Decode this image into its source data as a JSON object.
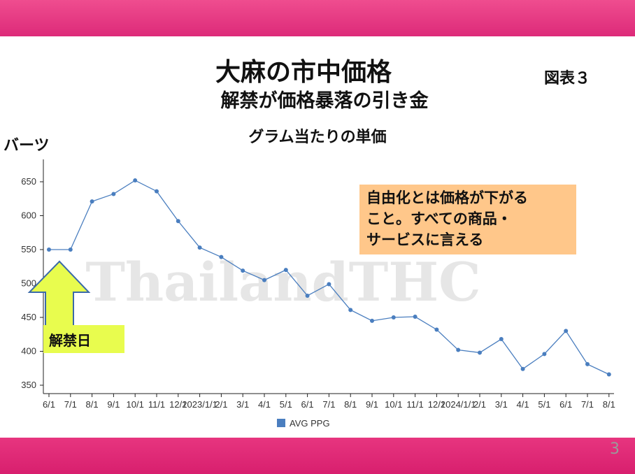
{
  "slide": {
    "title": "大麻の市中価格",
    "subtitle": "解禁が価格暴落の引き金",
    "figure_label": "図表３",
    "page_number": "3",
    "watermark": "ThailandTHC",
    "colors": {
      "band": "#e3307a",
      "line": "#4a7ebf",
      "note_bg": "#ffc78a",
      "arrow": "#e8fc4e"
    }
  },
  "note": {
    "lines": [
      "自由化とは価格が下がる",
      "こと。すべての商品・",
      "サービスに言える"
    ]
  },
  "ban_label": "解禁日",
  "chart_data": {
    "type": "line",
    "title": "グラム当たりの単価",
    "ylabel": "バーツ",
    "xlabel": "",
    "ylim": [
      340,
      680
    ],
    "yticks": [
      350,
      400,
      450,
      500,
      550,
      600,
      650
    ],
    "grid": false,
    "legend_position": "bottom",
    "categories": [
      "6/1",
      "7/1",
      "8/1",
      "9/1",
      "10/1",
      "11/1",
      "12/1",
      "2023/1/1",
      "2/1",
      "3/1",
      "4/1",
      "5/1",
      "6/1",
      "7/1",
      "8/1",
      "9/1",
      "10/1",
      "11/1",
      "12/1",
      "2024/1/1",
      "2/1",
      "3/1",
      "4/1",
      "5/1",
      "6/1",
      "7/1",
      "8/1"
    ],
    "series": [
      {
        "name": "AVG PPG",
        "values": [
          550,
          550,
          621,
          632,
          652,
          636,
          592,
          553,
          539,
          519,
          505,
          520,
          482,
          499,
          461,
          445,
          450,
          451,
          432,
          402,
          398,
          418,
          374,
          396,
          430,
          381,
          366
        ]
      }
    ]
  }
}
